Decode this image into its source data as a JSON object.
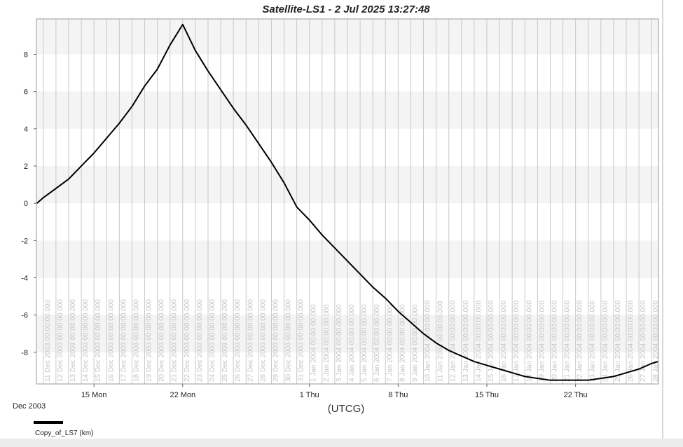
{
  "chart_data": {
    "type": "line",
    "title": "Satellite-LS1 -  2 Jul 2025 13:27:48",
    "x_label": "(UTCG)",
    "x_period_label": "Dec 2003",
    "legend_position": "bottom-left",
    "grid": true,
    "xlim": [
      "2003-12-10T11:00",
      "2004-01-28T13:00"
    ],
    "ylim": [
      -9.7,
      9.9
    ],
    "yticks": [
      -8,
      -6,
      -4,
      -2,
      0,
      2,
      4,
      6,
      8
    ],
    "xticks_major": [
      {
        "value": "2003-12-15T00:00",
        "label": "15 Mon"
      },
      {
        "value": "2003-12-22T00:00",
        "label": "22 Mon"
      },
      {
        "value": "2004-01-01T00:00",
        "label": "1 Thu"
      },
      {
        "value": "2004-01-08T00:00",
        "label": "8 Thu"
      },
      {
        "value": "2004-01-15T00:00",
        "label": "15 Thu"
      },
      {
        "value": "2004-01-22T00:00",
        "label": "22 Thu"
      }
    ],
    "xticks": [
      {
        "value": "2003-12-11T00:00",
        "label": "11 Dec 2003 00:00:00.000"
      },
      {
        "value": "2003-12-12T00:00",
        "label": "12 Dec 2003 00:00:00.000"
      },
      {
        "value": "2003-12-13T00:00",
        "label": "13 Dec 2003 00:00:00.000"
      },
      {
        "value": "2003-12-14T00:00",
        "label": "14 Dec 2003 00:00:00.000"
      },
      {
        "value": "2003-12-15T00:00",
        "label": "15 Dec 2003 00:00:00.000"
      },
      {
        "value": "2003-12-16T00:00",
        "label": "16 Dec 2003 00:00:00.000"
      },
      {
        "value": "2003-12-17T00:00",
        "label": "17 Dec 2003 00:00:00.000"
      },
      {
        "value": "2003-12-18T00:00",
        "label": "18 Dec 2003 00:00:00.000"
      },
      {
        "value": "2003-12-19T00:00",
        "label": "19 Dec 2003 00:00:00.000"
      },
      {
        "value": "2003-12-20T00:00",
        "label": "20 Dec 2003 00:00:00.000"
      },
      {
        "value": "2003-12-21T00:00",
        "label": "21 Dec 2003 00:00:00.000"
      },
      {
        "value": "2003-12-22T00:00",
        "label": "22 Dec 2003 00:00:00.000"
      },
      {
        "value": "2003-12-23T00:00",
        "label": "23 Dec 2003 00:00:00.000"
      },
      {
        "value": "2003-12-24T00:00",
        "label": "24 Dec 2003 00:00:00.000"
      },
      {
        "value": "2003-12-25T00:00",
        "label": "25 Dec 2003 00:00:00.000"
      },
      {
        "value": "2003-12-26T00:00",
        "label": "26 Dec 2003 00:00:00.000"
      },
      {
        "value": "2003-12-27T00:00",
        "label": "27 Dec 2003 00:00:00.000"
      },
      {
        "value": "2003-12-28T00:00",
        "label": "28 Dec 2003 00:00:00.000"
      },
      {
        "value": "2003-12-29T00:00",
        "label": "29 Dec 2003 00:00:00.000"
      },
      {
        "value": "2003-12-30T00:00",
        "label": "30 Dec 2003 00:00:00.000"
      },
      {
        "value": "2003-12-31T00:00",
        "label": "31 Dec 2003 00:00:00.000"
      },
      {
        "value": "2004-01-01T00:00",
        "label": "1 Jan 2004 00:00:00.000"
      },
      {
        "value": "2004-01-02T00:00",
        "label": "2 Jan 2004 00:00:00.000"
      },
      {
        "value": "2004-01-03T00:00",
        "label": "3 Jan 2004 00:00:00.000"
      },
      {
        "value": "2004-01-04T00:00",
        "label": "4 Jan 2004 00:00:00.000"
      },
      {
        "value": "2004-01-05T00:00",
        "label": "5 Jan 2004 00:00:00.000"
      },
      {
        "value": "2004-01-06T00:00",
        "label": "6 Jan 2004 00:00:00.000"
      },
      {
        "value": "2004-01-07T00:00",
        "label": "7 Jan 2004 00:00:00.000"
      },
      {
        "value": "2004-01-08T00:00",
        "label": "8 Jan 2004 00:00:00.000"
      },
      {
        "value": "2004-01-09T00:00",
        "label": "9 Jan 2004 00:00:00.000"
      },
      {
        "value": "2004-01-10T00:00",
        "label": "10 Jan 2004 00:00:00.000"
      },
      {
        "value": "2004-01-11T00:00",
        "label": "11 Jan 2004 00:00:00.000"
      },
      {
        "value": "2004-01-12T00:00",
        "label": "12 Jan 2004 00:00:00.000"
      },
      {
        "value": "2004-01-13T00:00",
        "label": "13 Jan 2004 00:00:00.000"
      },
      {
        "value": "2004-01-14T00:00",
        "label": "14 Jan 2004 00:00:00.000"
      },
      {
        "value": "2004-01-15T00:00",
        "label": "15 Jan 2004 00:00:00.000"
      },
      {
        "value": "2004-01-16T00:00",
        "label": "16 Jan 2004 00:00:00.000"
      },
      {
        "value": "2004-01-17T00:00",
        "label": "17 Jan 2004 00:00:00.000"
      },
      {
        "value": "2004-01-18T00:00",
        "label": "18 Jan 2004 00:00:00.000"
      },
      {
        "value": "2004-01-19T00:00",
        "label": "19 Jan 2004 00:00:00.000"
      },
      {
        "value": "2004-01-20T00:00",
        "label": "20 Jan 2004 00:00:00.000"
      },
      {
        "value": "2004-01-21T00:00",
        "label": "21 Jan 2004 00:00:00.000"
      },
      {
        "value": "2004-01-22T00:00",
        "label": "22 Jan 2004 00:00:00.000"
      },
      {
        "value": "2004-01-23T00:00",
        "label": "23 Jan 2004 00:00:00.000"
      },
      {
        "value": "2004-01-24T00:00",
        "label": "24 Jan 2004 00:00:00.000"
      },
      {
        "value": "2004-01-25T00:00",
        "label": "25 Jan 2004 00:00:00.000"
      },
      {
        "value": "2004-01-26T00:00",
        "label": "26 Jan 2004 00:00:00.000"
      },
      {
        "value": "2004-01-27T00:00",
        "label": "27 Jan 2004 00:00:00.000"
      },
      {
        "value": "2004-01-28T00:00",
        "label": "28 Jan 2004 00:00:00.000"
      }
    ],
    "x": [
      "2003-12-10T12:00",
      "2003-12-11T00:00",
      "2003-12-12T00:00",
      "2003-12-13T00:00",
      "2003-12-14T00:00",
      "2003-12-15T00:00",
      "2003-12-16T00:00",
      "2003-12-17T00:00",
      "2003-12-18T00:00",
      "2003-12-19T00:00",
      "2003-12-20T00:00",
      "2003-12-21T00:00",
      "2003-12-22T00:00",
      "2003-12-23T00:00",
      "2003-12-24T00:00",
      "2003-12-25T00:00",
      "2003-12-26T00:00",
      "2003-12-27T00:00",
      "2003-12-28T00:00",
      "2003-12-29T00:00",
      "2003-12-30T00:00",
      "2003-12-31T00:00",
      "2004-01-01T00:00",
      "2004-01-02T00:00",
      "2004-01-03T00:00",
      "2004-01-04T00:00",
      "2004-01-05T00:00",
      "2004-01-06T00:00",
      "2004-01-07T00:00",
      "2004-01-08T00:00",
      "2004-01-09T00:00",
      "2004-01-10T00:00",
      "2004-01-11T00:00",
      "2004-01-12T00:00",
      "2004-01-13T00:00",
      "2004-01-14T00:00",
      "2004-01-15T00:00",
      "2004-01-16T00:00",
      "2004-01-17T00:00",
      "2004-01-18T00:00",
      "2004-01-19T00:00",
      "2004-01-20T00:00",
      "2004-01-21T00:00",
      "2004-01-22T00:00",
      "2004-01-23T00:00",
      "2004-01-24T00:00",
      "2004-01-25T00:00",
      "2004-01-26T00:00",
      "2004-01-27T00:00",
      "2004-01-28T00:00",
      "2004-01-28T12:00"
    ],
    "series": [
      {
        "name": "Copy_of_LS7 (km)",
        "color": "#000000",
        "values": [
          0,
          0.3,
          0.8,
          1.3,
          2.0,
          2.7,
          3.5,
          4.3,
          5.2,
          6.3,
          7.2,
          8.5,
          9.6,
          8.2,
          7.1,
          6.1,
          5.1,
          4.2,
          3.2,
          2.2,
          1.1,
          -0.2,
          -0.9,
          -1.7,
          -2.4,
          -3.1,
          -3.8,
          -4.5,
          -5.1,
          -5.8,
          -6.4,
          -7.0,
          -7.5,
          -7.9,
          -8.2,
          -8.5,
          -8.7,
          -8.9,
          -9.1,
          -9.3,
          -9.4,
          -9.5,
          -9.5,
          -9.5,
          -9.5,
          -9.4,
          -9.3,
          -9.1,
          -8.9,
          -8.6,
          -8.5
        ]
      }
    ]
  }
}
